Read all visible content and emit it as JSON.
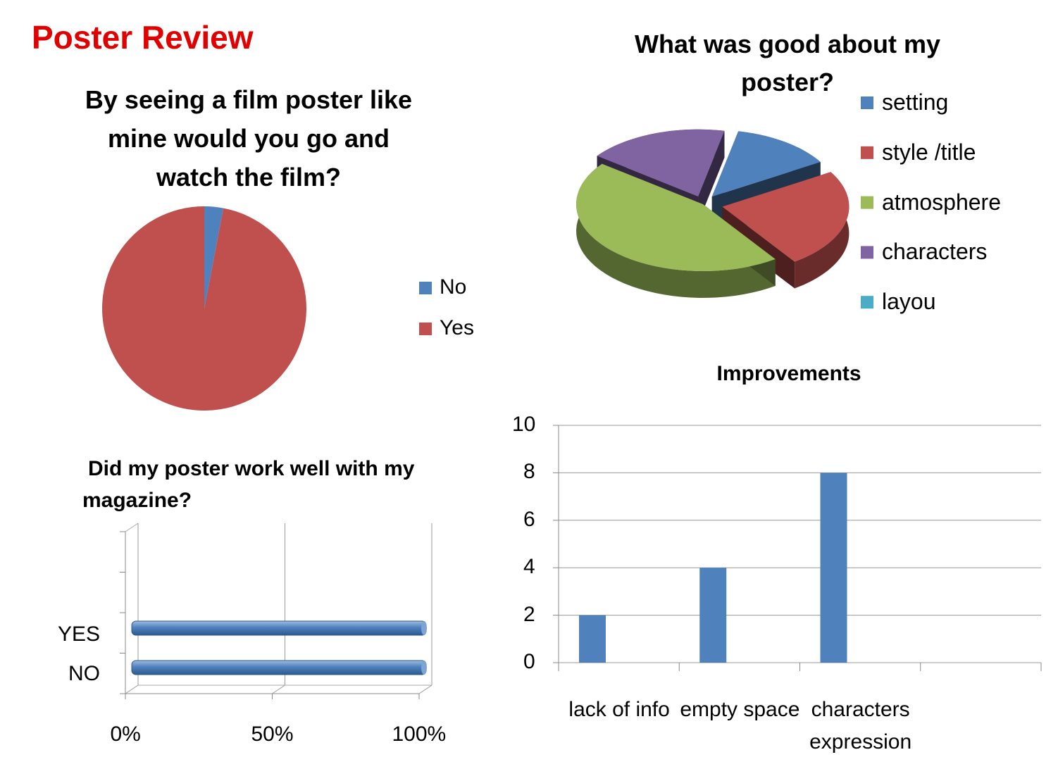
{
  "page_title": "Poster Review",
  "chart_data": [
    {
      "type": "pie",
      "title": "By seeing a film poster like mine would you go and watch the film?",
      "categories": [
        "No",
        "Yes"
      ],
      "values": [
        3,
        97
      ],
      "colors": [
        "#4f81bd",
        "#c0504d"
      ]
    },
    {
      "type": "pie3d",
      "title": "What was good about my poster?",
      "categories": [
        "setting",
        "style /title",
        "atmosphere",
        "characters",
        "layou"
      ],
      "values": [
        13,
        24,
        45,
        18,
        0
      ],
      "colors": [
        "#4f81bd",
        "#c0504d",
        "#9bbb59",
        "#8064a2",
        "#4bacc6"
      ]
    },
    {
      "type": "hbar3d",
      "title": "Did my poster work well with my magazine?",
      "categories": [
        "NO",
        "YES"
      ],
      "values": [
        100,
        100
      ],
      "color": "#4f81bd",
      "xlim": [
        0,
        100
      ],
      "xticks": [
        {
          "value": 0,
          "label": "0%"
        },
        {
          "value": 50,
          "label": "50%"
        },
        {
          "value": 100,
          "label": "100%"
        }
      ],
      "grid": true
    },
    {
      "type": "bar",
      "title": "Improvements",
      "categories": [
        "lack of info",
        "empty space",
        "characters expression",
        null
      ],
      "values": [
        2,
        4,
        8,
        null
      ],
      "color": "#4f81bd",
      "ylim": [
        0,
        10
      ],
      "yticks": [
        0,
        2,
        4,
        6,
        8,
        10
      ],
      "grid": true
    }
  ]
}
